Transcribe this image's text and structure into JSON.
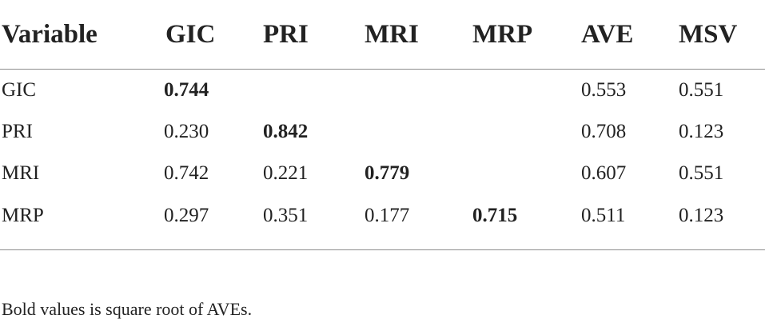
{
  "table": {
    "headers": [
      "Variable",
      "GIC",
      "PRI",
      "MRI",
      "MRP",
      "AVE",
      "MSV"
    ],
    "rows": [
      [
        "GIC",
        "0.744",
        "",
        "",
        "",
        "0.553",
        "0.551"
      ],
      [
        "PRI",
        "0.230",
        "0.842",
        "",
        "",
        "0.708",
        "0.123"
      ],
      [
        "MRI",
        "0.742",
        "0.221",
        "0.779",
        "",
        "0.607",
        "0.551"
      ],
      [
        "MRP",
        "0.297",
        "0.351",
        "0.177",
        "0.715",
        "0.511",
        "0.123"
      ]
    ]
  },
  "footnote": "Bold values is square root of AVEs."
}
